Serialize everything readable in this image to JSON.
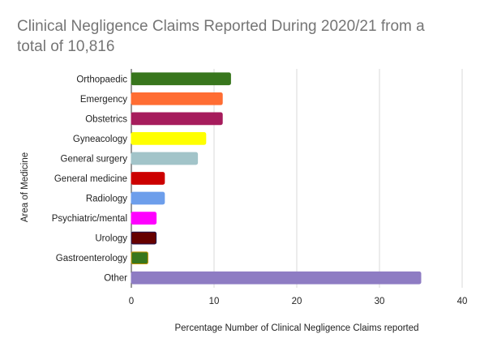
{
  "chart_data": {
    "type": "bar",
    "orientation": "horizontal",
    "title_lines": [
      "Clinical Negligence Claims Reported During 2020/21 from a",
      "total of 10,816"
    ],
    "xlabel": "Percentage Number of Clinical Negligence Claims reported",
    "ylabel": "Area of Medicine",
    "xlim": [
      0,
      40
    ],
    "xticks": [
      "0",
      "10",
      "20",
      "30",
      "40"
    ],
    "grid": true,
    "categories": [
      "Orthopaedic",
      "Emergency",
      "Obstetrics",
      "Gyneacology",
      "General surgery",
      "General medicine",
      "Radiology",
      "Psychiatric/mental",
      "Urology",
      "Gastroenterology",
      "Other"
    ],
    "values": [
      12,
      11,
      11,
      9,
      8,
      4,
      4,
      3,
      3,
      2,
      35
    ],
    "colors": [
      "#38761d",
      "#ff6d33",
      "#a61c5c",
      "#ffff00",
      "#a2c4c9",
      "#cc0000",
      "#6d9eeb",
      "#ff00ff",
      "#660000",
      "#38761d",
      "#8e7cc3"
    ],
    "border_colors": [
      "#38761d",
      "#ff6d33",
      "#a61c5c",
      "#ffff00",
      "#a2c4c9",
      "#cc0000",
      "#6d9eeb",
      "#ff00ff",
      "#20124d",
      "#bf9000",
      "#8e7cc3"
    ]
  }
}
